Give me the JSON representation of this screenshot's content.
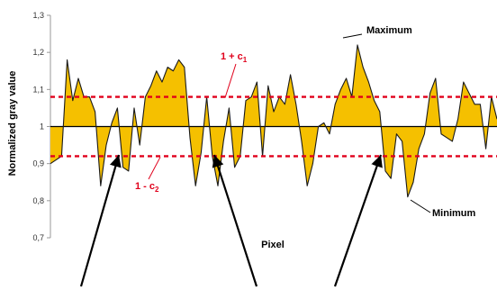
{
  "chart_data": {
    "type": "area",
    "ylabel": "Normalized gray value",
    "xlabel": "Pixel",
    "ylim": [
      0.7,
      1.3
    ],
    "yticks": [
      "0,7",
      "0,8",
      "0,9",
      "1",
      "1,1",
      "1,2",
      "1,3"
    ],
    "baseline": 1.0,
    "fill_color": "#F5C000",
    "threshold_color": "#E0001B",
    "thresholds": [
      {
        "value": 1.08,
        "label_main": "1 + c",
        "label_sub": "1"
      },
      {
        "value": 0.92,
        "label_main": "1 - c",
        "label_sub": "2"
      }
    ],
    "annotations": {
      "maximum": "Maximum",
      "minimum": "Minimum"
    },
    "series": [
      {
        "values": [
          0.9,
          0.91,
          0.92,
          1.18,
          1.07,
          1.13,
          1.08,
          1.08,
          1.04,
          0.84,
          0.95,
          1.01,
          1.05,
          0.89,
          0.88,
          1.05,
          0.95,
          1.08,
          1.11,
          1.15,
          1.12,
          1.16,
          1.15,
          1.18,
          1.16,
          0.97,
          0.84,
          0.93,
          1.08,
          0.92,
          0.84,
          0.96,
          1.05,
          0.89,
          0.92,
          1.07,
          1.08,
          1.12,
          0.92,
          1.11,
          1.04,
          1.08,
          1.06,
          1.14,
          1.06,
          0.96,
          0.84,
          0.9,
          1.0,
          1.01,
          0.98,
          1.06,
          1.1,
          1.13,
          1.08,
          1.22,
          1.16,
          1.12,
          1.07,
          1.04,
          0.88,
          0.86,
          0.98,
          0.96,
          0.81,
          0.85,
          0.94,
          0.98,
          1.09,
          1.13,
          0.98,
          0.97,
          0.96,
          1.02,
          1.12,
          1.09,
          1.06,
          1.06,
          0.94,
          1.08,
          1.02
        ]
      }
    ],
    "arrows": [
      {
        "from": [
          90,
          318
        ],
        "to": [
          132,
          172
        ]
      },
      {
        "from": [
          285,
          318
        ],
        "to": [
          238,
          172
        ]
      },
      {
        "from": [
          372,
          318
        ],
        "to": [
          423,
          172
        ]
      }
    ]
  }
}
